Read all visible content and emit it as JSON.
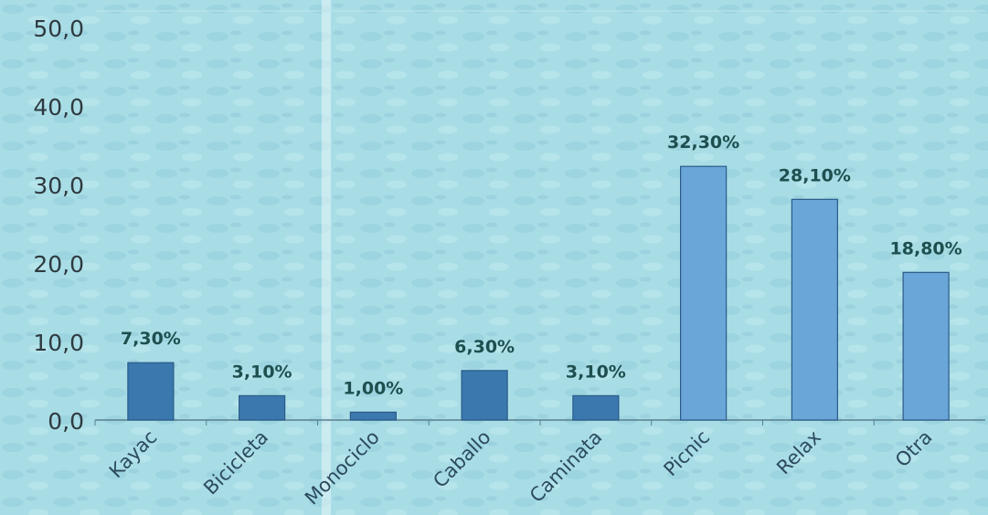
{
  "chart_data": {
    "type": "bar",
    "title": "",
    "xlabel": "",
    "ylabel": "",
    "categories": [
      "Kayac",
      "Bicicleta",
      "Monociclo",
      "Caballo",
      "Caminata",
      "Picnic",
      "Relax",
      "Otra"
    ],
    "values": [
      7.3,
      3.1,
      1.0,
      6.3,
      3.1,
      32.3,
      28.1,
      18.8
    ],
    "data_labels": [
      "7,30%",
      "3,10%",
      "1,00%",
      "6,30%",
      "3,10%",
      "32,30%",
      "28,10%",
      "18,80%"
    ],
    "ylim": [
      0,
      50
    ],
    "yticks": [
      0,
      10,
      20,
      30,
      40,
      50
    ],
    "ytick_labels": [
      "0,0",
      "10,0",
      "20,0",
      "30,0",
      "40,0",
      "50,0"
    ],
    "grid": false,
    "legend": "none",
    "colors": {
      "plot_background": "#a8dde6",
      "bar_dark": "#3a78ae",
      "bar_light": "#6aa6d8",
      "bar_stroke": "#2a5a88",
      "label_dark": "#1e4f4f",
      "tick_text": "#2e3a40",
      "cat_text": "#2c4a5e",
      "axis": "#5a7f8f"
    }
  }
}
